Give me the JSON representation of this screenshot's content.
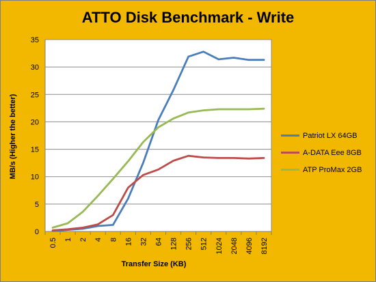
{
  "chart_data": {
    "type": "line",
    "title": "ATTO Disk Benchmark - Write",
    "xlabel": "Transfer Size (KB)",
    "ylabel": "MB/s (Higher the better)",
    "ylim": [
      0,
      35
    ],
    "yticks": [
      0,
      5,
      10,
      15,
      20,
      25,
      30,
      35
    ],
    "grid": true,
    "legend_position": "right",
    "categories": [
      "0.5",
      "1",
      "2",
      "4",
      "8",
      "16",
      "32",
      "64",
      "128",
      "256",
      "512",
      "1024",
      "2048",
      "4096",
      "8192"
    ],
    "series": [
      {
        "name": "Patriot LX 64GB",
        "color": "#4a7ebb",
        "values": [
          0.1,
          0.3,
          0.5,
          1.0,
          1.2,
          6.0,
          12.5,
          20.3,
          25.8,
          31.9,
          32.8,
          31.4,
          31.7,
          31.3,
          31.3
        ]
      },
      {
        "name": "A-DATA Eee 8GB",
        "color": "#be4b48",
        "values": [
          0.2,
          0.4,
          0.7,
          1.3,
          3.0,
          8.0,
          10.3,
          11.3,
          12.9,
          13.8,
          13.5,
          13.4,
          13.4,
          13.3,
          13.4
        ]
      },
      {
        "name": "ATP ProMax 2GB",
        "color": "#98b954",
        "values": [
          0.7,
          1.5,
          3.6,
          6.5,
          9.6,
          12.8,
          16.3,
          19.0,
          20.6,
          21.7,
          22.1,
          22.3,
          22.3,
          22.3,
          22.4
        ]
      }
    ]
  },
  "colors": {
    "background": "#f2b800",
    "plot_area": "#ffffff",
    "gridline": "#8c8c8c"
  }
}
